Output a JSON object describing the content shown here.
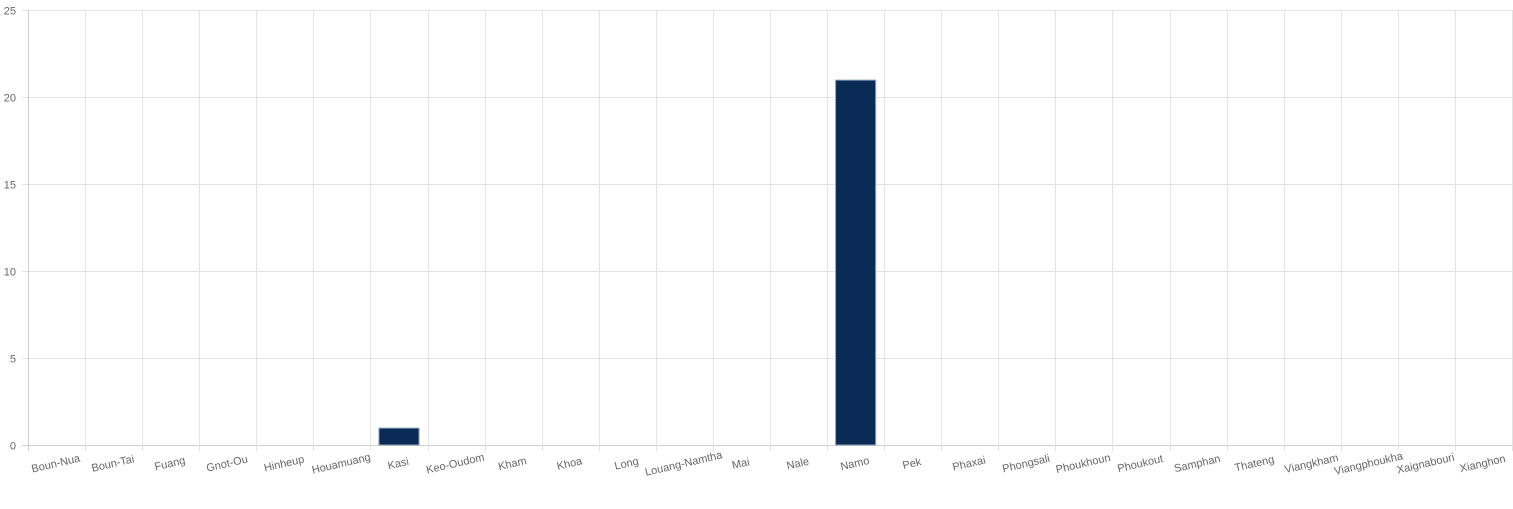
{
  "chart_data": {
    "type": "bar",
    "title": "",
    "xlabel": "",
    "ylabel": "",
    "categories": [
      "Boun-Nua",
      "Boun-Tai",
      "Fuang",
      "Gnot-Ou",
      "Hinheup",
      "Houamuang",
      "Kasi",
      "Keo-Oudom",
      "Kham",
      "Khoa",
      "Long",
      "Louang-Namtha",
      "Mai",
      "Nale",
      "Namo",
      "Pek",
      "Phaxai",
      "Phongsali",
      "Phoukhoun",
      "Phoukout",
      "Samphan",
      "Thateng",
      "Viangkham",
      "Viangphoukha",
      "Xaignabouri",
      "Xianghon"
    ],
    "values": [
      0,
      0,
      0,
      0,
      0,
      0,
      1,
      0,
      0,
      0,
      0,
      0,
      0,
      0,
      21,
      0,
      0,
      0,
      0,
      0,
      0,
      0,
      0,
      0,
      0,
      0
    ],
    "ylim": [
      0,
      25
    ],
    "yticks": [
      0,
      5,
      10,
      15,
      20,
      25
    ],
    "grid": true,
    "legend": "none",
    "colors": {
      "bar_fill": "#0b2b57",
      "bar_stroke": "#8fa3bb",
      "grid": "#e3e3e3",
      "axis": "#cfcfcf",
      "tick_text": "#666666"
    }
  }
}
